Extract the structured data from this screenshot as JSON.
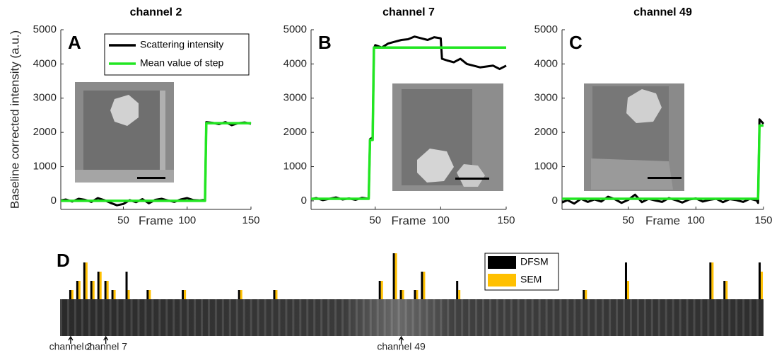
{
  "chart_data": [
    {
      "type": "line",
      "title": "channel 2",
      "panel_label": "A",
      "xlabel": "Frame",
      "ylabel": "Baseline corrected intensity (a.u.)",
      "xlim": [
        1,
        150
      ],
      "xticks": [
        50,
        100,
        150
      ],
      "ylim": [
        -250,
        5000
      ],
      "yticks": [
        0,
        1000,
        2000,
        3000,
        4000,
        5000
      ],
      "legend": true,
      "x": [
        1,
        5,
        10,
        15,
        20,
        25,
        30,
        35,
        40,
        45,
        50,
        55,
        60,
        65,
        70,
        75,
        80,
        85,
        90,
        95,
        100,
        105,
        110,
        114,
        115,
        120,
        125,
        130,
        135,
        140,
        145,
        150
      ],
      "series": [
        {
          "name": "Scattering intensity",
          "color": "#000000",
          "values": [
            10,
            40,
            -20,
            60,
            30,
            -30,
            80,
            20,
            -60,
            -130,
            -90,
            20,
            -40,
            50,
            -70,
            30,
            60,
            10,
            -30,
            40,
            80,
            20,
            10,
            30,
            2300,
            2280,
            2240,
            2300,
            2210,
            2270,
            2290,
            2250
          ]
        },
        {
          "name": "Mean value of step",
          "color": "#22e622",
          "values": [
            0,
            0,
            0,
            0,
            0,
            0,
            0,
            0,
            0,
            0,
            0,
            0,
            0,
            0,
            0,
            0,
            0,
            0,
            0,
            0,
            0,
            0,
            0,
            0,
            2270,
            2270,
            2270,
            2270,
            2270,
            2270,
            2270,
            2270
          ]
        }
      ]
    },
    {
      "type": "line",
      "title": "channel 7",
      "panel_label": "B",
      "xlabel": "Frame",
      "xlim": [
        1,
        150
      ],
      "xticks": [
        50,
        100,
        150
      ],
      "ylim": [
        -250,
        5000
      ],
      "yticks": [
        0,
        1000,
        2000,
        3000,
        4000,
        5000
      ],
      "legend": false,
      "x": [
        1,
        5,
        10,
        15,
        20,
        25,
        30,
        35,
        40,
        45,
        46,
        48,
        49,
        50,
        55,
        60,
        65,
        70,
        75,
        80,
        85,
        90,
        95,
        100,
        101,
        105,
        110,
        115,
        120,
        130,
        140,
        145,
        150
      ],
      "series": [
        {
          "name": "Scattering intensity",
          "color": "#000000",
          "values": [
            50,
            80,
            20,
            60,
            100,
            40,
            70,
            30,
            90,
            60,
            1800,
            1850,
            4450,
            4550,
            4480,
            4600,
            4650,
            4700,
            4720,
            4800,
            4750,
            4700,
            4780,
            4750,
            4150,
            4100,
            4050,
            4150,
            4000,
            3900,
            3950,
            3850,
            3950
          ]
        },
        {
          "name": "Mean value of step",
          "color": "#22e622",
          "values": [
            60,
            60,
            60,
            60,
            60,
            60,
            60,
            60,
            60,
            60,
            1780,
            1780,
            4480,
            4480,
            4480,
            4480,
            4480,
            4480,
            4480,
            4480,
            4480,
            4480,
            4480,
            4480,
            4480,
            4480,
            4480,
            4480,
            4480,
            4480,
            4480,
            4480,
            4480
          ]
        }
      ]
    },
    {
      "type": "line",
      "title": "channel 49",
      "panel_label": "C",
      "xlabel": "Frame",
      "xlim": [
        1,
        150
      ],
      "xticks": [
        50,
        100,
        150
      ],
      "ylim": [
        -250,
        5000
      ],
      "yticks": [
        0,
        1000,
        2000,
        3000,
        4000,
        5000
      ],
      "legend": false,
      "x": [
        1,
        5,
        10,
        15,
        20,
        25,
        30,
        35,
        40,
        45,
        50,
        55,
        60,
        65,
        70,
        75,
        80,
        85,
        90,
        95,
        100,
        105,
        110,
        115,
        120,
        125,
        130,
        135,
        140,
        145,
        146,
        147,
        150
      ],
      "series": [
        {
          "name": "Scattering intensity",
          "color": "#000000",
          "values": [
            -50,
            20,
            -80,
            60,
            -30,
            40,
            -20,
            120,
            50,
            -60,
            30,
            180,
            -40,
            60,
            10,
            -30,
            80,
            20,
            -50,
            40,
            70,
            -20,
            30,
            60,
            -40,
            50,
            20,
            -30,
            60,
            10,
            -60,
            2380,
            2250
          ]
        },
        {
          "name": "Mean value of step",
          "color": "#22e622",
          "values": [
            60,
            60,
            60,
            60,
            60,
            60,
            60,
            60,
            60,
            60,
            60,
            60,
            60,
            60,
            60,
            60,
            60,
            60,
            60,
            60,
            60,
            60,
            60,
            60,
            60,
            60,
            60,
            60,
            60,
            60,
            60,
            2200,
            2200
          ]
        }
      ]
    },
    {
      "type": "bar",
      "panel_label": "D",
      "xlim": [
        0.5,
        100.5
      ],
      "ylim": [
        0,
        5
      ],
      "x": [
        2,
        3,
        4,
        5,
        6,
        7,
        8,
        10,
        13,
        18,
        26,
        31,
        46,
        48,
        49,
        51,
        52,
        57,
        75,
        81,
        93,
        95,
        100
      ],
      "series": [
        {
          "name": "DFSM",
          "color": "#000000",
          "values": [
            1,
            2,
            4,
            2,
            3,
            2,
            1,
            3,
            1,
            1,
            1,
            1,
            2,
            5,
            1,
            1,
            3,
            2,
            1,
            4,
            4,
            2,
            4
          ]
        },
        {
          "name": "SEM",
          "color": "#ffc000",
          "values": [
            1,
            2,
            4,
            2,
            3,
            2,
            1,
            1,
            1,
            1,
            1,
            1,
            2,
            5,
            1,
            1,
            3,
            1,
            1,
            2,
            4,
            2,
            3
          ]
        }
      ],
      "annotations": [
        {
          "text": "channel 2",
          "x": 2
        },
        {
          "text": "channel 7",
          "x": 7
        },
        {
          "text": "channel 49",
          "x": 49
        }
      ]
    }
  ]
}
